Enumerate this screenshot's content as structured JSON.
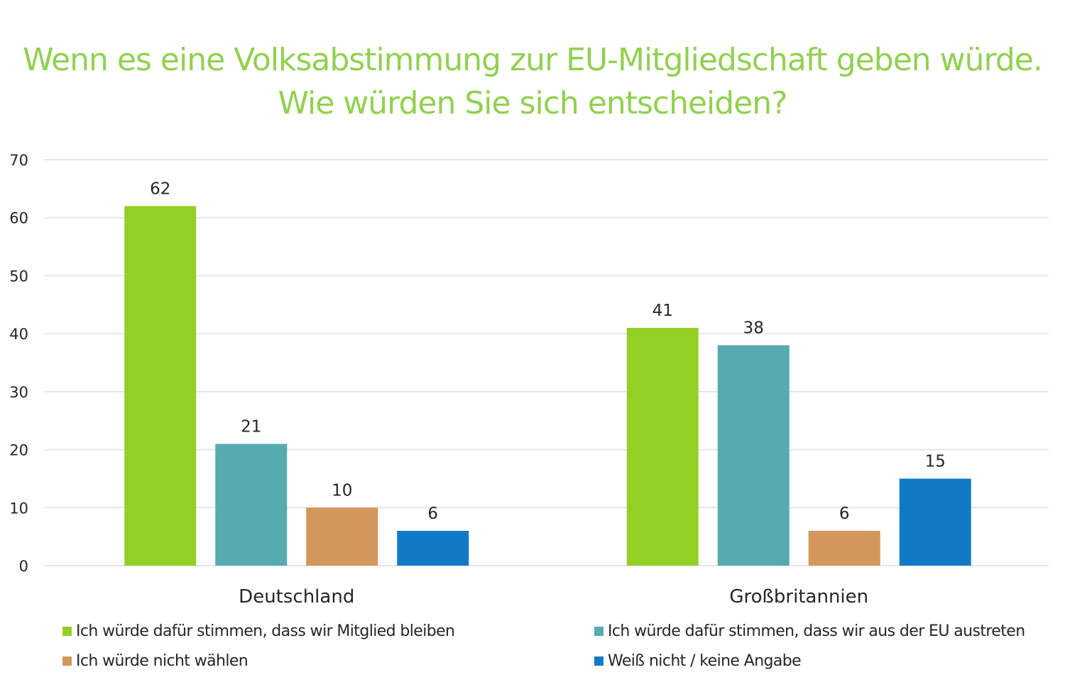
{
  "chart_data": {
    "type": "bar",
    "title": "Wenn es eine Volksabstimmung zur EU-Mitgliedschaft geben würde.",
    "subtitle": "Wie würden Sie sich entscheiden?",
    "categories": [
      "Deutschland",
      "Großbritannien"
    ],
    "series": [
      {
        "name": "Ich würde dafür stimmen, dass wir Mitglied bleiben",
        "color": "#94cf26",
        "values": [
          62,
          41
        ]
      },
      {
        "name": "Ich würde dafür stimmen, dass wir aus der EU austreten",
        "color": "#55abb0",
        "values": [
          21,
          38
        ]
      },
      {
        "name": "Ich würde nicht wählen",
        "color": "#d3975b",
        "values": [
          10,
          6
        ]
      },
      {
        "name": "Weiß nicht / keine Angabe",
        "color": "#117ac6",
        "values": [
          6,
          15
        ]
      }
    ],
    "xlabel": "",
    "ylabel": "",
    "ylim": [
      0,
      70
    ],
    "yticks": [
      0,
      10,
      20,
      30,
      40,
      50,
      60,
      70
    ],
    "grid": true,
    "data_labels": true,
    "legend_position": "bottom"
  },
  "colors": {
    "title": "#92d050",
    "text": "#262626",
    "grid": "#e6e6e6"
  }
}
